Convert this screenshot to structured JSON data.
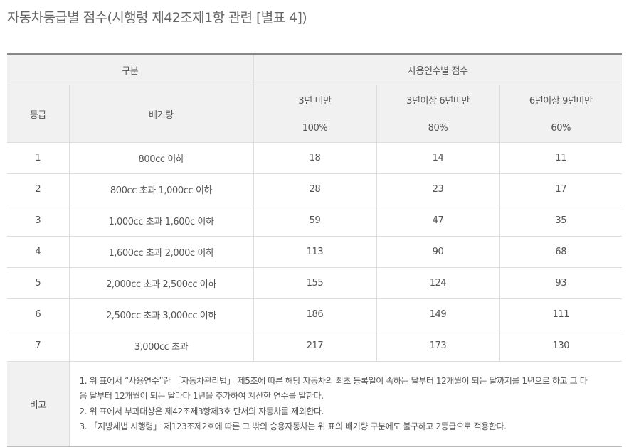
{
  "title": "자동차등급별 점수(시행령 제42조제1항 관련 [별표 4])",
  "header": {
    "category": "구분",
    "score_by_years": "사용연수별 점수",
    "grade": "등급",
    "displacement": "배기량",
    "periods": [
      "3년 미만",
      "3년이상 6년미만",
      "6년이상 9년미만"
    ],
    "percents": [
      "100%",
      "80%",
      "60%"
    ]
  },
  "rows": [
    {
      "grade": "1",
      "displacement": "800cc 이하",
      "s1": "18",
      "s2": "14",
      "s3": "11"
    },
    {
      "grade": "2",
      "displacement": "800cc 초과 1,000cc 이하",
      "s1": "28",
      "s2": "23",
      "s3": "17"
    },
    {
      "grade": "3",
      "displacement": "1,000cc 초과 1,600c 이하",
      "s1": "59",
      "s2": "47",
      "s3": "35"
    },
    {
      "grade": "4",
      "displacement": "1,600cc 초과 2,000c 이하",
      "s1": "113",
      "s2": "90",
      "s3": "68"
    },
    {
      "grade": "5",
      "displacement": "2,000cc 초과 2,500cc 이하",
      "s1": "155",
      "s2": "124",
      "s3": "93"
    },
    {
      "grade": "6",
      "displacement": "2,500cc 초과 3,000cc 이하",
      "s1": "186",
      "s2": "149",
      "s3": "111"
    },
    {
      "grade": "7",
      "displacement": "3,000cc 초과",
      "s1": "217",
      "s2": "173",
      "s3": "130"
    }
  ],
  "remarks": {
    "label": "비고",
    "lines": [
      "1. 위 표에서 “사용연수”란 「자동차관리법」 제5조에 따른 해당 자동차의 최초 등록일이 속하는 달부터 12개월이 되는 달까지를 1년으로 하고 그 다",
      "음 달부터 12개월이 되는 달마다 1년을 추가하여 계산한 연수를 말한다.",
      "2. 위 표에서 부과대상은 제42조제3항제3호 단서의 자동차를 제외한다.",
      "3. 「지방세법 시행령」 제123조제2호에 따른 그 밖의 승용자동차는 위 표의 배기량 구분에도 불구하고 2등급으로 적용한다."
    ]
  }
}
